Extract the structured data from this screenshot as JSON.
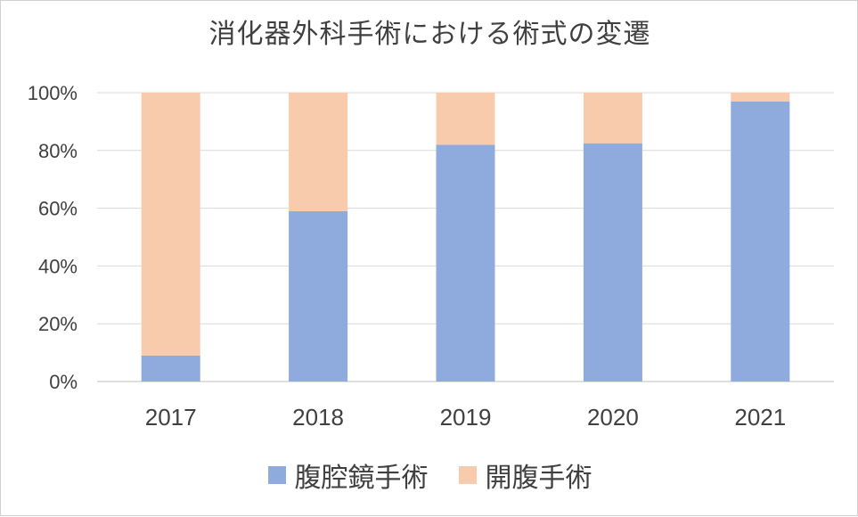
{
  "chart_data": {
    "type": "bar",
    "stacked": true,
    "title": "消化器外科手術における術式の変遷",
    "categories": [
      "2017",
      "2018",
      "2019",
      "2020",
      "2021"
    ],
    "series": [
      {
        "name": "腹腔鏡手術",
        "color": "#8faadc",
        "values": [
          9,
          59,
          82,
          82.5,
          97
        ]
      },
      {
        "name": "開腹手術",
        "color": "#f8cbad",
        "values": [
          91,
          41,
          18,
          17.5,
          3
        ]
      }
    ],
    "ylim": [
      0,
      100
    ],
    "yticks": [
      "0%",
      "20%",
      "40%",
      "60%",
      "80%",
      "100%"
    ],
    "grid": true,
    "legend_position": "bottom"
  }
}
